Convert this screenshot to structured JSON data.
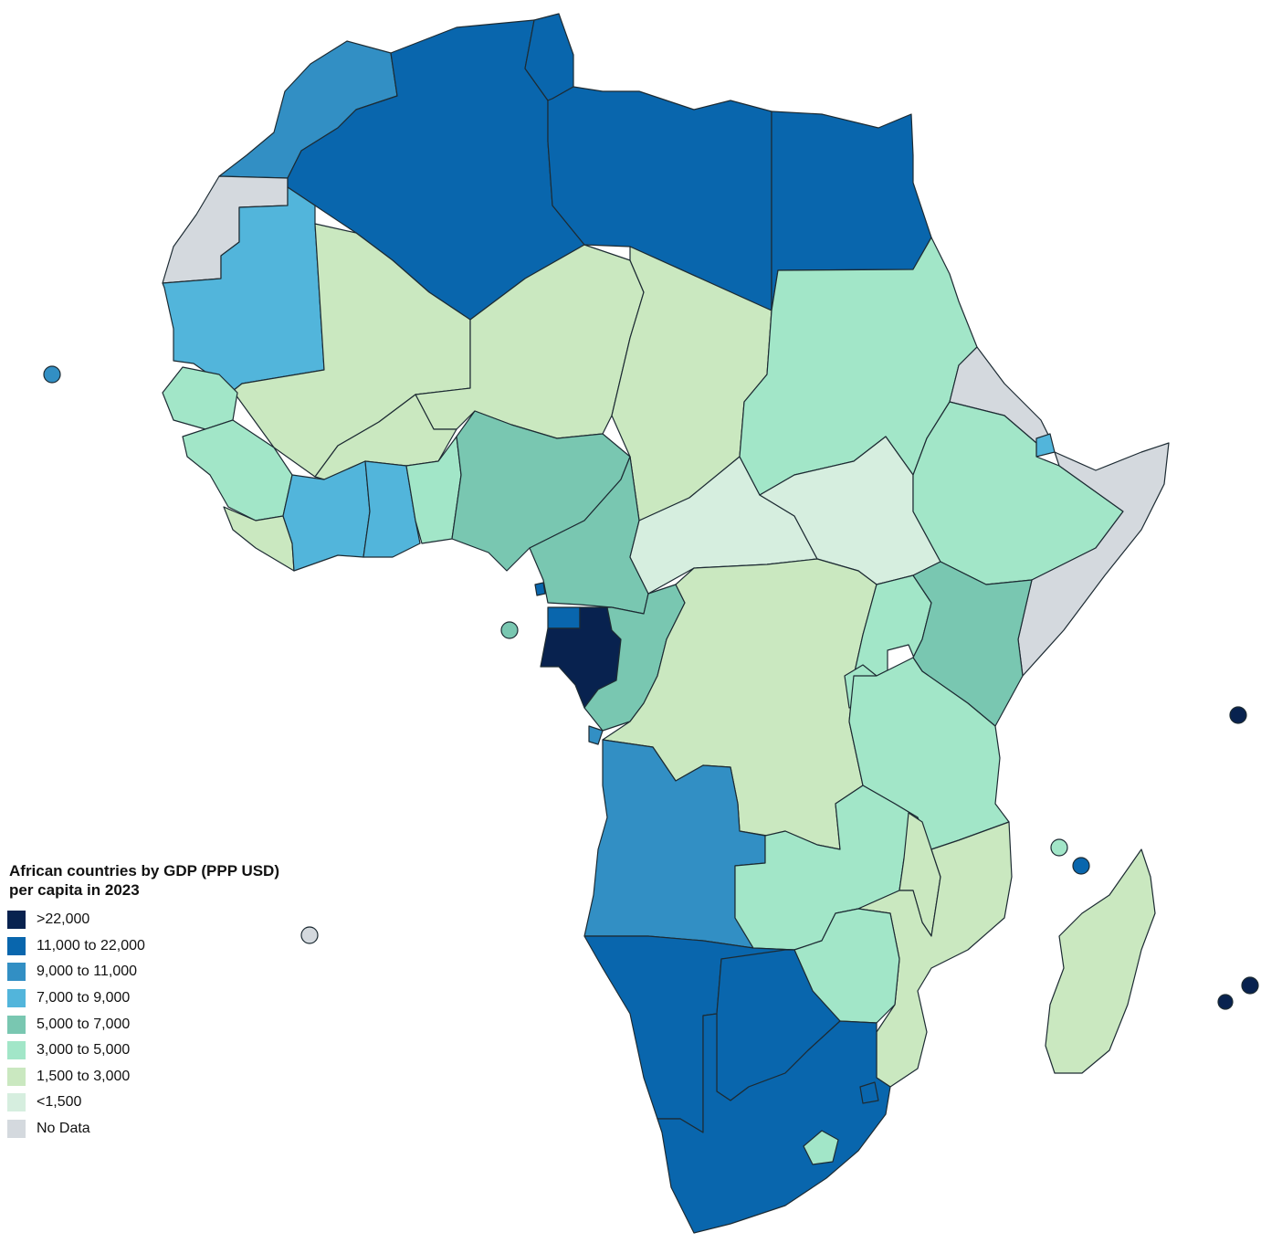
{
  "title": "African countries by GDP (PPP USD) per capita in 2023",
  "legend": [
    {
      "label": ">22,000",
      "color": "#08224f"
    },
    {
      "label": "11,000 to 22,000",
      "color": "#0966ad"
    },
    {
      "label": "9,000 to 11,000",
      "color": "#328fc4"
    },
    {
      "label": "7,000 to 9,000",
      "color": "#52b5db"
    },
    {
      "label": "5,000 to 7,000",
      "color": "#79c7b1"
    },
    {
      "label": "3,000 to 5,000",
      "color": "#a2e6c8"
    },
    {
      "label": "1,500 to 3,000",
      "color": "#cae8c0"
    },
    {
      "label": "<1,500",
      "color": "#d6eedf"
    },
    {
      "label": "No Data",
      "color": "#d4d9de"
    }
  ]
}
